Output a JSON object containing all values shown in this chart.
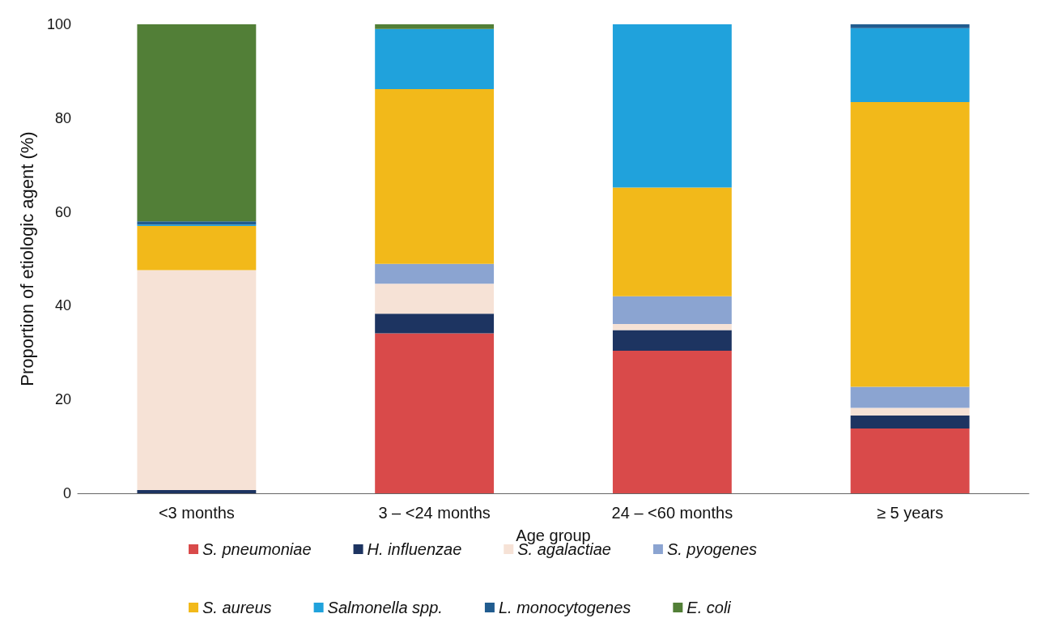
{
  "chart_data": {
    "type": "bar",
    "stacked": true,
    "xlabel": "Age group",
    "ylabel": "Proportion of etiologic agent (%)",
    "categories": [
      "<3 months",
      "3 – <24 months",
      "24 – <60 months",
      "≥ 5 years"
    ],
    "series": [
      {
        "name": "S. pneumoniae",
        "color": "#d94a4a",
        "values": [
          0,
          34.1,
          30.4,
          13.8
        ]
      },
      {
        "name": "H. influenzae",
        "color": "#1d3461",
        "values": [
          0.7,
          4.2,
          4.4,
          2.8
        ]
      },
      {
        "name": "S. agalactiae",
        "color": "#f6e2d6",
        "values": [
          46.9,
          6.4,
          1.3,
          1.6
        ]
      },
      {
        "name": "S. pyogenes",
        "color": "#8ba4d1",
        "values": [
          0,
          4.2,
          5.9,
          4.5
        ]
      },
      {
        "name": "S. aureus",
        "color": "#f2b91a",
        "values": [
          9.4,
          37.3,
          23.2,
          60.7
        ]
      },
      {
        "name": "Salmonella spp.",
        "color": "#20a2dc",
        "values": [
          0.3,
          12.8,
          34.8,
          15.8
        ]
      },
      {
        "name": "L. monocytogenes",
        "color": "#215c8f",
        "values": [
          0.7,
          0,
          0,
          0.8
        ]
      },
      {
        "name": "E. coli",
        "color": "#527f37",
        "values": [
          42.0,
          1.0,
          0,
          0
        ]
      }
    ],
    "ylim": [
      0,
      100
    ],
    "yticks": [
      0,
      20,
      40,
      60,
      80,
      100
    ],
    "grid": false,
    "legend": "bottom"
  }
}
